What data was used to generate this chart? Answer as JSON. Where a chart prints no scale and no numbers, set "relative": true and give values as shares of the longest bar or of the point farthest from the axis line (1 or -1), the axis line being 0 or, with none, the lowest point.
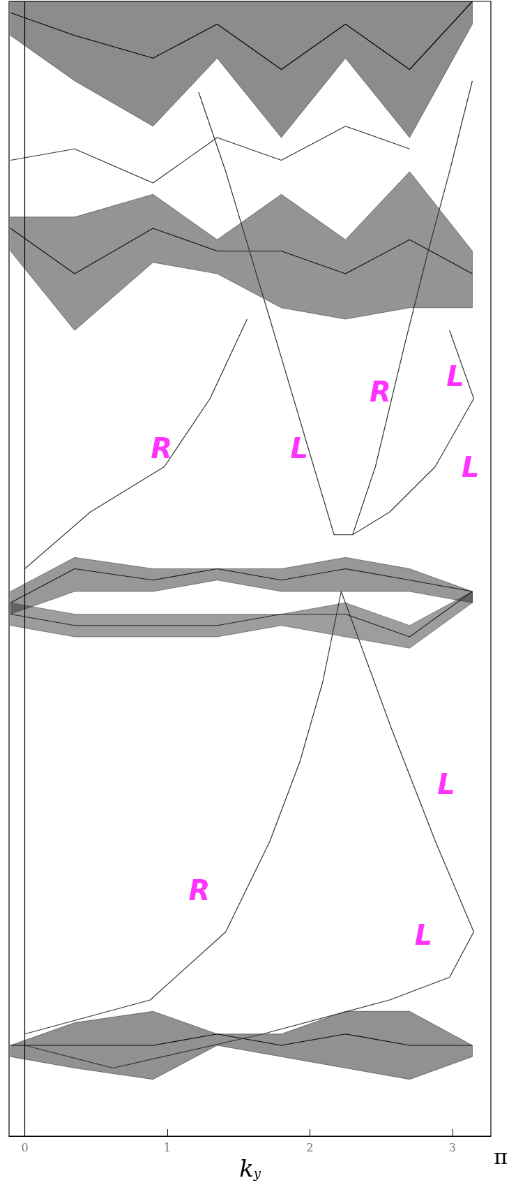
{
  "chart_data": {
    "type": "line",
    "relative": true,
    "xlabel": "k$_{y}$",
    "xlim": [
      -0.11,
      3.27
    ],
    "xticks": [
      0,
      1,
      2,
      3
    ],
    "grid": false,
    "marker": "none",
    "ref_lines": [
      {
        "axis": "x",
        "value": 0,
        "color": "#000000"
      }
    ],
    "annotations": [
      "π",
      "R",
      "L",
      "R",
      "L",
      "L",
      "L",
      "R",
      "L"
    ],
    "series": [
      {
        "color": "#000000",
        "x": [
          -0.1,
          0.35,
          0.9,
          1.35,
          1.8,
          2.25,
          2.7,
          3.14
        ],
        "values": [
          0.99,
          0.97,
          0.95,
          0.98,
          0.94,
          0.98,
          0.94,
          1
        ],
        "lower": [
          0.97,
          0.93,
          0.89,
          0.95,
          0.88,
          0.95,
          0.88,
          0.98
        ],
        "upper": [
          1,
          1,
          1,
          1,
          1,
          1,
          1,
          1
        ]
      },
      {
        "color": "#111111",
        "x": [
          -0.1,
          0.35,
          0.9,
          1.35,
          1.8,
          2.25,
          2.7,
          3.14
        ],
        "values": [
          0.8,
          0.76,
          0.8,
          0.78,
          0.78,
          0.76,
          0.79,
          0.76
        ],
        "lower": [
          0.78,
          0.71,
          0.77,
          0.76,
          0.73,
          0.72,
          0.73,
          0.73
        ],
        "upper": [
          0.81,
          0.81,
          0.83,
          0.79,
          0.83,
          0.79,
          0.85,
          0.78
        ]
      },
      {
        "color": "#1a1a1a",
        "x": [
          -0.1,
          0.35,
          0.9,
          1.35,
          1.8,
          2.25,
          2.7,
          3.14
        ],
        "values": [
          0.47,
          0.5,
          0.49,
          0.5,
          0.49,
          0.5,
          0.49,
          0.48
        ],
        "lower": [
          0.46,
          0.48,
          0.48,
          0.49,
          0.48,
          0.48,
          0.48,
          0.47
        ],
        "upper": [
          0.48,
          0.51,
          0.5,
          0.5,
          0.5,
          0.51,
          0.5,
          0.48
        ]
      },
      {
        "color": "#262626",
        "x": [
          -0.1,
          0.35,
          0.9,
          1.35,
          1.8,
          2.25,
          2.7,
          3.14
        ],
        "values": [
          0.46,
          0.45,
          0.45,
          0.45,
          0.46,
          0.46,
          0.44,
          0.48
        ],
        "lower": [
          0.45,
          0.44,
          0.44,
          0.44,
          0.45,
          0.44,
          0.43,
          0.47
        ],
        "upper": [
          0.47,
          0.46,
          0.46,
          0.46,
          0.46,
          0.47,
          0.45,
          0.48
        ]
      },
      {
        "color": "#0a0a0a",
        "x": [
          -0.1,
          0.35,
          0.9,
          1.35,
          1.8,
          2.25,
          2.7,
          3.14
        ],
        "values": [
          0.08,
          0.08,
          0.08,
          0.09,
          0.08,
          0.09,
          0.08,
          0.08
        ],
        "lower": [
          0.07,
          0.06,
          0.05,
          0.08,
          0.07,
          0.06,
          0.05,
          0.07
        ],
        "upper": [
          0.08,
          0.1,
          0.11,
          0.09,
          0.09,
          0.11,
          0.11,
          0.08
        ]
      },
      {
        "color": "#333333",
        "x": [
          0,
          0.88,
          1.41,
          1.72,
          1.93,
          2.09,
          2.22
        ],
        "values": [
          0.09,
          0.12,
          0.18,
          0.26,
          0.33,
          0.4,
          0.48
        ]
      },
      {
        "color": "#333333",
        "x": [
          2.22,
          2.57,
          2.88,
          3.15,
          2.98,
          2.56,
          1.67,
          0.62,
          0
        ],
        "values": [
          0.48,
          0.36,
          0.26,
          0.18,
          0.14,
          0.12,
          0.09,
          0.06,
          0.08
        ]
      },
      {
        "color": "#333333",
        "x": [
          0,
          0.46,
          0.98,
          1.3,
          1.56
        ],
        "values": [
          0.5,
          0.55,
          0.59,
          0.65,
          0.72
        ]
      },
      {
        "color": "#333333",
        "x": [
          1.22,
          1.41,
          1.72,
          1.98,
          2.17,
          2.3,
          2.56,
          2.88,
          3.15,
          2.98
        ],
        "values": [
          0.92,
          0.85,
          0.72,
          0.61,
          0.53,
          0.53,
          0.55,
          0.59,
          0.65,
          0.71
        ]
      },
      {
        "color": "#333333",
        "x": [
          2.3,
          2.46,
          2.67,
          2.83,
          2.98,
          3.14
        ],
        "values": [
          0.53,
          0.59,
          0.7,
          0.78,
          0.85,
          0.93
        ]
      },
      {
        "color": "#333333",
        "x": [
          -0.1,
          0.35,
          0.9,
          1.35,
          1.8,
          2.25,
          2.7
        ],
        "values": [
          0.86,
          0.87,
          0.84,
          0.88,
          0.86,
          0.89,
          0.87
        ]
      }
    ]
  }
}
